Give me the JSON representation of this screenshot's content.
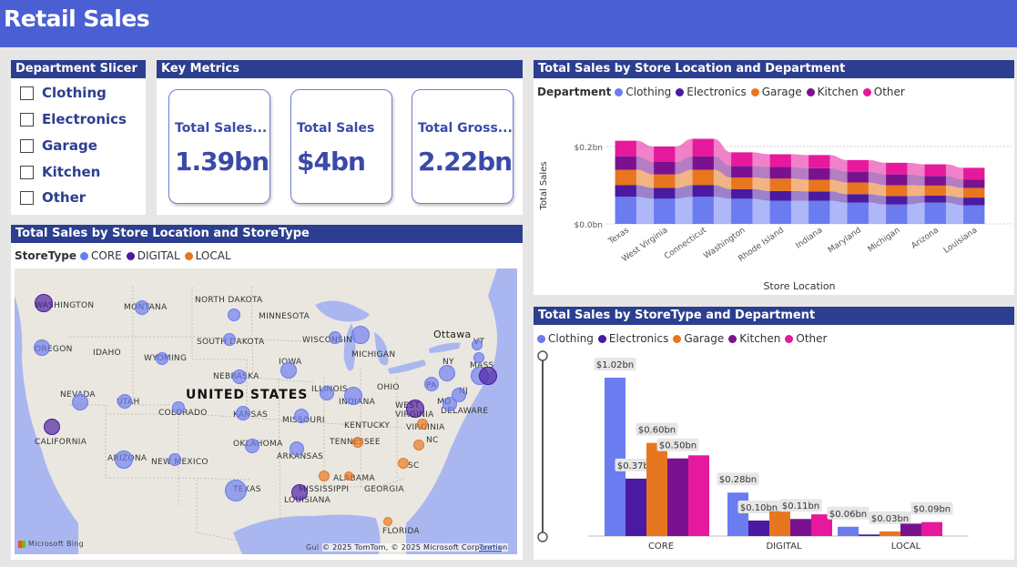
{
  "header": {
    "title": "Retail Sales"
  },
  "slicer": {
    "title": "Department Slicer",
    "items": [
      "Clothing",
      "Electronics",
      "Garage",
      "Kitchen",
      "Other"
    ]
  },
  "metrics": {
    "title": "Key Metrics",
    "cards": [
      {
        "label": "Total Sales...",
        "value": "1.39bn"
      },
      {
        "label": "Total Sales",
        "value": "$4bn"
      },
      {
        "label": "Total Gross...",
        "value": "2.22bn"
      }
    ]
  },
  "map_panel": {
    "title": "Total Sales by Store Location and StoreType",
    "legend_title": "StoreType",
    "legend": [
      {
        "name": "CORE",
        "color": "#6b7bf0"
      },
      {
        "name": "DIGITAL",
        "color": "#4a1aa0"
      },
      {
        "name": "LOCAL",
        "color": "#e8761e"
      }
    ],
    "country_label": "UNITED STATES",
    "city_label": "Ottawa",
    "state_labels": [
      "WASHINGTON",
      "MONTANA",
      "NORTH DAKOTA",
      "MINNESOTA",
      "OREGON",
      "IDAHO",
      "SOUTH DAKOTA",
      "WYOMING",
      "WISCONSIN",
      "MICHIGAN",
      "NEBRASKA",
      "IOWA",
      "NEVADA",
      "UTAH",
      "COLORADO",
      "KANSAS",
      "ILLINOIS",
      "INDIANA",
      "OHIO",
      "PA",
      "NY",
      "VT",
      "MASS",
      "NJ",
      "MD",
      "WEST VIRGINIA",
      "VIRGINIA",
      "DELAWARE",
      "CALIFORNIA",
      "MISSOURI",
      "KENTUCKY",
      "OKLAHOMA",
      "ARKANSAS",
      "TENNESSEE",
      "NC",
      "ARIZONA",
      "NEW MEXICO",
      "TEXAS",
      "MISSISSIPPI",
      "ALABAMA",
      "GEORGIA",
      "LOUISIANA",
      "SC",
      "FLORIDA"
    ],
    "copyright": "© 2025 TomTom, © 2025 Microsoft Corporation",
    "terms": "Terms",
    "bing": "Microsoft Bing",
    "gulf": "Gul"
  },
  "ribbon": {
    "title": "Total Sales by Store Location and Department",
    "legend_title": "Department",
    "ylabel": "Total Sales",
    "xlabel": "Store Location",
    "yticks": [
      "$0.2bn",
      "$0.0bn"
    ]
  },
  "bars": {
    "title": "Total Sales by StoreType and Department"
  },
  "chart_data": [
    {
      "type": "area",
      "title": "Total Sales by Store Location and Department",
      "xlabel": "Store Location",
      "ylabel": "Total Sales",
      "ylim": [
        0,
        0.24
      ],
      "grid": true,
      "legend_position": "top-left",
      "categories": [
        "Texas",
        "West Virginia",
        "Connecticut",
        "Washington",
        "Rhode Island",
        "Indiana",
        "Maryland",
        "Michigan",
        "Arizona",
        "Louisiana"
      ],
      "series": [
        {
          "name": "Clothing",
          "color": "#6b7bf0",
          "values": [
            0.07,
            0.065,
            0.07,
            0.065,
            0.06,
            0.06,
            0.055,
            0.05,
            0.055,
            0.048
          ]
        },
        {
          "name": "Electronics",
          "color": "#4a1aa0",
          "values": [
            0.03,
            0.028,
            0.03,
            0.025,
            0.025,
            0.024,
            0.022,
            0.022,
            0.018,
            0.02
          ]
        },
        {
          "name": "Garage",
          "color": "#e8761e",
          "values": [
            0.04,
            0.035,
            0.04,
            0.03,
            0.032,
            0.03,
            0.03,
            0.028,
            0.026,
            0.025
          ]
        },
        {
          "name": "Kitchen",
          "color": "#7a1290",
          "values": [
            0.035,
            0.032,
            0.035,
            0.03,
            0.03,
            0.03,
            0.028,
            0.028,
            0.025,
            0.022
          ]
        },
        {
          "name": "Other",
          "color": "#e6199c",
          "values": [
            0.04,
            0.04,
            0.045,
            0.035,
            0.033,
            0.034,
            0.03,
            0.03,
            0.03,
            0.03
          ]
        }
      ]
    },
    {
      "type": "bar",
      "title": "Total Sales by StoreType and Department",
      "legend_position": "top-left",
      "categories": [
        "CORE",
        "DIGITAL",
        "LOCAL"
      ],
      "series": [
        {
          "name": "Clothing",
          "color": "#6b7bf0",
          "values": [
            1.02,
            0.28,
            0.06
          ],
          "labels": [
            "$1.02bn",
            "$0.28bn",
            "$0.06bn"
          ]
        },
        {
          "name": "Electronics",
          "color": "#4a1aa0",
          "values": [
            0.37,
            0.1,
            0.01
          ],
          "labels": [
            "$0.37bn",
            "$0.10bn",
            ""
          ]
        },
        {
          "name": "Garage",
          "color": "#e8761e",
          "values": [
            0.6,
            0.16,
            0.03
          ],
          "labels": [
            "$0.60bn",
            "",
            "$0.03bn"
          ]
        },
        {
          "name": "Kitchen",
          "color": "#7a1290",
          "values": [
            0.5,
            0.11,
            0.08
          ],
          "labels": [
            "$0.50bn",
            "$0.11bn",
            ""
          ]
        },
        {
          "name": "Other",
          "color": "#e6199c",
          "values": [
            0.52,
            0.14,
            0.09
          ],
          "labels": [
            "",
            "",
            "$0.09bn"
          ]
        }
      ]
    }
  ]
}
